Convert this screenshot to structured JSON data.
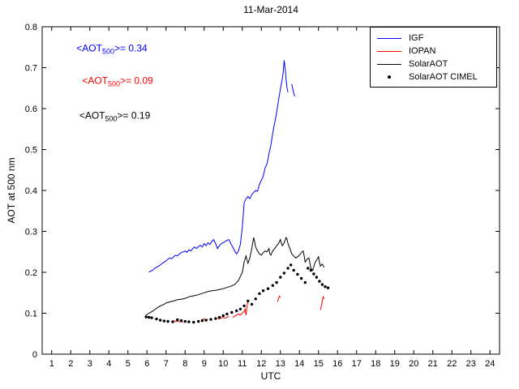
{
  "chart_data": {
    "type": "line",
    "title": "11-Mar-2014",
    "xlabel": "UTC",
    "ylabel": "AOT at 500 nm",
    "xlim": [
      0.5,
      24.5
    ],
    "ylim": [
      0,
      0.8
    ],
    "xticks": [
      1,
      2,
      3,
      4,
      5,
      6,
      7,
      8,
      9,
      10,
      11,
      12,
      13,
      14,
      15,
      16,
      17,
      18,
      19,
      20,
      21,
      22,
      23,
      24
    ],
    "yticks": [
      0,
      0.1,
      0.2,
      0.3,
      0.4,
      0.5,
      0.6,
      0.7,
      0.8
    ],
    "ytick_labels": [
      "0",
      "0.1",
      "0.2",
      "0.3",
      "0.4",
      "0.5",
      "0.6",
      "0.7",
      "0.8"
    ],
    "grid": false,
    "legend_position": "top-right",
    "annotations": [
      {
        "x": 2.3,
        "y": 0.74,
        "color": "#0000ff",
        "pre": "<AOT",
        "sub": "500",
        "post": ">= 0.34"
      },
      {
        "x": 2.6,
        "y": 0.66,
        "color": "#ff0000",
        "pre": "<AOT",
        "sub": "500",
        "post": ">= 0.09"
      },
      {
        "x": 2.45,
        "y": 0.575,
        "color": "#000000",
        "pre": "<AOT",
        "sub": "500",
        "post": ">= 0.19"
      }
    ],
    "legend": {
      "items": [
        {
          "label": "IGF",
          "color": "#0000ff",
          "marker": "line"
        },
        {
          "label": "IOPAN",
          "color": "#ff0000",
          "marker": "line"
        },
        {
          "label": "SolarAOT",
          "color": "#000000",
          "marker": "line"
        },
        {
          "label": "SolarAOT CIMEL",
          "color": "#000000",
          "marker": "dot"
        }
      ]
    },
    "series": [
      {
        "name": "IGF",
        "color": "#0000ff",
        "style": "line",
        "segments": [
          [
            [
              6.1,
              0.2
            ],
            [
              6.2,
              0.203
            ],
            [
              6.3,
              0.205
            ],
            [
              6.4,
              0.21
            ],
            [
              6.5,
              0.212
            ],
            [
              6.6,
              0.215
            ],
            [
              6.7,
              0.218
            ],
            [
              6.8,
              0.222
            ],
            [
              6.9,
              0.225
            ],
            [
              7.0,
              0.228
            ],
            [
              7.1,
              0.232
            ],
            [
              7.2,
              0.235
            ],
            [
              7.3,
              0.233
            ],
            [
              7.4,
              0.238
            ],
            [
              7.5,
              0.242
            ],
            [
              7.6,
              0.24
            ],
            [
              7.7,
              0.245
            ],
            [
              7.8,
              0.248
            ],
            [
              7.9,
              0.25
            ],
            [
              8.0,
              0.252
            ],
            [
              8.1,
              0.249
            ],
            [
              8.2,
              0.255
            ],
            [
              8.3,
              0.252
            ],
            [
              8.4,
              0.258
            ],
            [
              8.5,
              0.262
            ],
            [
              8.6,
              0.258
            ],
            [
              8.7,
              0.263
            ],
            [
              8.8,
              0.266
            ],
            [
              8.9,
              0.262
            ],
            [
              9.0,
              0.27
            ],
            [
              9.1,
              0.265
            ],
            [
              9.2,
              0.272
            ],
            [
              9.3,
              0.268
            ],
            [
              9.4,
              0.275
            ],
            [
              9.5,
              0.28
            ],
            [
              9.6,
              0.27
            ],
            [
              9.7,
              0.258
            ],
            [
              9.8,
              0.265
            ],
            [
              9.9,
              0.27
            ],
            [
              10.0,
              0.272
            ],
            [
              10.1,
              0.275
            ],
            [
              10.2,
              0.278
            ],
            [
              10.3,
              0.28
            ],
            [
              10.4,
              0.27
            ],
            [
              10.5,
              0.262
            ],
            [
              10.6,
              0.252
            ],
            [
              10.7,
              0.245
            ],
            [
              10.8,
              0.252
            ],
            [
              10.9,
              0.268
            ],
            [
              11.0,
              0.31
            ],
            [
              11.1,
              0.37
            ],
            [
              11.2,
              0.38
            ],
            [
              11.3,
              0.385
            ],
            [
              11.4,
              0.38
            ],
            [
              11.5,
              0.39
            ],
            [
              11.6,
              0.395
            ],
            [
              11.7,
              0.4
            ],
            [
              11.8,
              0.398
            ],
            [
              11.9,
              0.415
            ],
            [
              12.0,
              0.425
            ],
            [
              12.1,
              0.435
            ],
            [
              12.2,
              0.455
            ],
            [
              12.3,
              0.465
            ],
            [
              12.4,
              0.49
            ],
            [
              12.5,
              0.51
            ],
            [
              12.6,
              0.54
            ],
            [
              12.7,
              0.565
            ],
            [
              12.8,
              0.59
            ],
            [
              12.9,
              0.62
            ],
            [
              13.0,
              0.648
            ],
            [
              13.05,
              0.66
            ],
            [
              13.1,
              0.672
            ],
            [
              13.15,
              0.69
            ],
            [
              13.2,
              0.718
            ],
            [
              13.25,
              0.7
            ],
            [
              13.3,
              0.67
            ],
            [
              13.35,
              0.65
            ],
            [
              13.4,
              0.64
            ]
          ],
          [
            [
              13.6,
              0.66
            ],
            [
              13.65,
              0.648
            ],
            [
              13.7,
              0.638
            ],
            [
              13.75,
              0.63
            ]
          ]
        ]
      },
      {
        "name": "IOPAN",
        "color": "#ff0000",
        "style": "line",
        "segments": [
          [
            [
              5.95,
              0.092
            ],
            [
              6.05,
              0.09
            ],
            [
              6.15,
              0.091
            ],
            [
              6.25,
              0.089
            ]
          ],
          [
            [
              7.4,
              0.082
            ],
            [
              7.5,
              0.08
            ],
            [
              7.6,
              0.081
            ],
            [
              7.7,
              0.079
            ],
            [
              7.8,
              0.08
            ],
            [
              7.9,
              0.078
            ]
          ],
          [
            [
              8.9,
              0.084
            ],
            [
              9.0,
              0.086
            ],
            [
              9.1,
              0.083
            ],
            [
              9.2,
              0.085
            ]
          ],
          [
            [
              9.7,
              0.088
            ],
            [
              9.8,
              0.086
            ],
            [
              9.9,
              0.089
            ],
            [
              10.0,
              0.09
            ],
            [
              10.1,
              0.088
            ],
            [
              10.2,
              0.09
            ],
            [
              10.3,
              0.092
            ]
          ],
          [
            [
              10.5,
              0.09
            ],
            [
              10.6,
              0.093
            ],
            [
              10.7,
              0.095
            ],
            [
              10.8,
              0.098
            ],
            [
              10.9,
              0.096
            ],
            [
              11.0,
              0.1
            ],
            [
              11.1,
              0.105
            ],
            [
              11.15,
              0.11
            ],
            [
              11.2,
              0.095
            ],
            [
              11.25,
              0.118
            ],
            [
              11.3,
              0.13
            ]
          ],
          [
            [
              12.85,
              0.128
            ],
            [
              12.9,
              0.135
            ],
            [
              12.95,
              0.142
            ],
            [
              13.0,
              0.138
            ]
          ],
          [
            [
              15.1,
              0.108
            ],
            [
              15.15,
              0.118
            ],
            [
              15.2,
              0.13
            ],
            [
              15.25,
              0.14
            ],
            [
              15.3,
              0.135
            ]
          ]
        ]
      },
      {
        "name": "SolarAOT",
        "color": "#000000",
        "style": "line",
        "segments": [
          [
            [
              5.95,
              0.095
            ],
            [
              6.1,
              0.1
            ],
            [
              6.3,
              0.105
            ],
            [
              6.5,
              0.112
            ],
            [
              6.7,
              0.118
            ],
            [
              6.9,
              0.122
            ],
            [
              7.0,
              0.125
            ],
            [
              7.2,
              0.128
            ],
            [
              7.4,
              0.13
            ],
            [
              7.6,
              0.133
            ],
            [
              7.8,
              0.134
            ],
            [
              8.0,
              0.136
            ],
            [
              8.2,
              0.14
            ],
            [
              8.4,
              0.142
            ],
            [
              8.6,
              0.144
            ],
            [
              8.8,
              0.147
            ],
            [
              9.0,
              0.15
            ],
            [
              9.2,
              0.153
            ],
            [
              9.4,
              0.155
            ],
            [
              9.6,
              0.156
            ],
            [
              9.8,
              0.158
            ],
            [
              10.0,
              0.16
            ],
            [
              10.2,
              0.163
            ],
            [
              10.4,
              0.166
            ],
            [
              10.6,
              0.17
            ],
            [
              10.8,
              0.18
            ],
            [
              10.9,
              0.19
            ],
            [
              11.0,
              0.2
            ],
            [
              11.1,
              0.225
            ],
            [
              11.2,
              0.24
            ],
            [
              11.25,
              0.23
            ],
            [
              11.3,
              0.222
            ],
            [
              11.4,
              0.235
            ],
            [
              11.5,
              0.258
            ],
            [
              11.6,
              0.285
            ],
            [
              11.65,
              0.275
            ],
            [
              11.7,
              0.262
            ],
            [
              11.8,
              0.252
            ],
            [
              11.9,
              0.245
            ],
            [
              12.0,
              0.242
            ],
            [
              12.1,
              0.248
            ],
            [
              12.2,
              0.252
            ],
            [
              12.3,
              0.25
            ],
            [
              12.4,
              0.258
            ],
            [
              12.45,
              0.245
            ],
            [
              12.5,
              0.242
            ],
            [
              12.6,
              0.252
            ],
            [
              12.7,
              0.258
            ],
            [
              12.8,
              0.265
            ],
            [
              12.9,
              0.27
            ],
            [
              13.0,
              0.28
            ],
            [
              13.05,
              0.272
            ],
            [
              13.1,
              0.265
            ],
            [
              13.2,
              0.272
            ],
            [
              13.3,
              0.285
            ],
            [
              13.35,
              0.28
            ],
            [
              13.4,
              0.27
            ],
            [
              13.5,
              0.258
            ],
            [
              13.6,
              0.245
            ],
            [
              13.7,
              0.24
            ],
            [
              13.8,
              0.235
            ],
            [
              13.9,
              0.238
            ],
            [
              14.0,
              0.242
            ],
            [
              14.1,
              0.248
            ],
            [
              14.2,
              0.252
            ],
            [
              14.25,
              0.24
            ],
            [
              14.3,
              0.225
            ],
            [
              14.4,
              0.232
            ],
            [
              14.5,
              0.235
            ],
            [
              14.55,
              0.222
            ],
            [
              14.6,
              0.21
            ],
            [
              14.7,
              0.205
            ],
            [
              14.8,
              0.222
            ],
            [
              14.9,
              0.23
            ],
            [
              15.0,
              0.238
            ],
            [
              15.05,
              0.225
            ],
            [
              15.1,
              0.215
            ],
            [
              15.2,
              0.22
            ],
            [
              15.3,
              0.212
            ]
          ]
        ]
      },
      {
        "name": "SolarAOT CIMEL",
        "color": "#000000",
        "style": "scatter",
        "segments": [
          [
            [
              5.95,
              0.091
            ],
            [
              6.1,
              0.09
            ],
            [
              6.25,
              0.089
            ],
            [
              6.5,
              0.086
            ],
            [
              6.7,
              0.083
            ],
            [
              6.9,
              0.081
            ],
            [
              7.1,
              0.08
            ],
            [
              7.35,
              0.079
            ],
            [
              7.6,
              0.084
            ],
            [
              7.8,
              0.082
            ],
            [
              8.0,
              0.08
            ],
            [
              8.2,
              0.079
            ],
            [
              8.45,
              0.078
            ],
            [
              8.7,
              0.08
            ],
            [
              8.9,
              0.082
            ],
            [
              9.1,
              0.083
            ],
            [
              9.35,
              0.085
            ],
            [
              9.6,
              0.087
            ],
            [
              9.8,
              0.09
            ],
            [
              10.0,
              0.094
            ],
            [
              10.2,
              0.098
            ],
            [
              10.45,
              0.102
            ],
            [
              10.7,
              0.106
            ],
            [
              10.9,
              0.11
            ],
            [
              11.1,
              0.118
            ],
            [
              11.3,
              0.13
            ],
            [
              11.5,
              0.122
            ],
            [
              11.7,
              0.135
            ],
            [
              11.9,
              0.148
            ],
            [
              12.1,
              0.155
            ],
            [
              12.35,
              0.16
            ],
            [
              12.6,
              0.168
            ],
            [
              12.8,
              0.175
            ],
            [
              13.0,
              0.188
            ],
            [
              13.2,
              0.198
            ],
            [
              13.4,
              0.21
            ],
            [
              13.55,
              0.218
            ],
            [
              13.7,
              0.205
            ],
            [
              13.9,
              0.195
            ],
            [
              14.1,
              0.185
            ],
            [
              14.3,
              0.175
            ],
            [
              14.45,
              0.21
            ],
            [
              14.6,
              0.205
            ],
            [
              14.75,
              0.196
            ],
            [
              14.9,
              0.188
            ],
            [
              15.05,
              0.178
            ],
            [
              15.2,
              0.17
            ],
            [
              15.35,
              0.165
            ],
            [
              15.5,
              0.162
            ]
          ]
        ]
      }
    ]
  }
}
